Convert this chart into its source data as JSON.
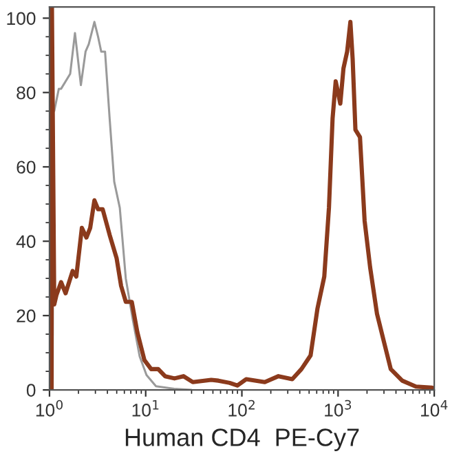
{
  "chart_data": {
    "type": "line",
    "xlabel": "Human CD4  PE-Cy7",
    "log": "x",
    "xlim": [
      1,
      10000
    ],
    "ylim": [
      0,
      103
    ],
    "xticks": [
      {
        "value": 1,
        "label": "10$^{0}$"
      },
      {
        "value": 10,
        "label": "10$^{1}$"
      },
      {
        "value": 100,
        "label": "10$^{2}$"
      },
      {
        "value": 1000,
        "label": "10$^{3}$"
      },
      {
        "value": 10000,
        "label": "10$^{4}$"
      }
    ],
    "yticks": [
      0,
      20,
      40,
      60,
      80,
      100
    ],
    "grid": false,
    "legend": false,
    "marker": "none",
    "line_style": "solid",
    "series": [
      {
        "color": "#9a9a9a",
        "x": [
          1.08,
          1.09,
          1.12,
          1.25,
          1.32,
          1.64,
          1.84,
          2.12,
          2.37,
          2.56,
          2.93,
          3.2,
          3.45,
          3.78,
          4.22,
          4.71,
          5.38,
          6.21,
          7.33,
          8.66,
          10.2,
          12.8,
          19.9,
          30
        ],
        "values": [
          0,
          75,
          75,
          81,
          81,
          85,
          96,
          82,
          91,
          93,
          99,
          95,
          91,
          91,
          73,
          56,
          49,
          30,
          19,
          9,
          4,
          1,
          0.3,
          0
        ]
      },
      {
        "color": "#8b3a1c",
        "x": [
          1.05,
          1.06,
          1.12,
          1.18,
          1.32,
          1.47,
          1.74,
          1.9,
          2.17,
          2.42,
          2.65,
          2.93,
          3.2,
          3.57,
          4.22,
          4.98,
          5.55,
          6.21,
          7.17,
          8.18,
          9.7,
          11.4,
          13.5,
          15.9,
          19.9,
          24.7,
          30.9,
          48,
          57,
          74.6,
          89.6,
          111,
          173,
          240,
          334,
          416,
          518,
          610,
          719,
          804,
          877,
          945,
          1055,
          1138,
          1243,
          1343,
          1418,
          1515,
          1690,
          1888,
          2154,
          2539,
          2996,
          3532,
          4642,
          6450,
          9460
        ],
        "values": [
          0,
          103,
          23,
          25.5,
          29,
          26,
          32,
          30.5,
          43.6,
          41,
          43.6,
          51,
          48.6,
          48.6,
          41.7,
          35.5,
          28,
          23.7,
          23.7,
          15.6,
          8,
          5.6,
          5.6,
          3.7,
          3.1,
          3.7,
          2.1,
          2.7,
          2.5,
          1.9,
          1.2,
          2.9,
          2.1,
          3.7,
          2.9,
          5.6,
          9.3,
          21.8,
          30.5,
          49,
          73,
          83,
          77,
          86.5,
          91,
          99,
          89,
          70,
          68,
          45.5,
          33,
          20.5,
          13,
          5.6,
          2.5,
          0.9,
          0.6
        ]
      }
    ]
  }
}
